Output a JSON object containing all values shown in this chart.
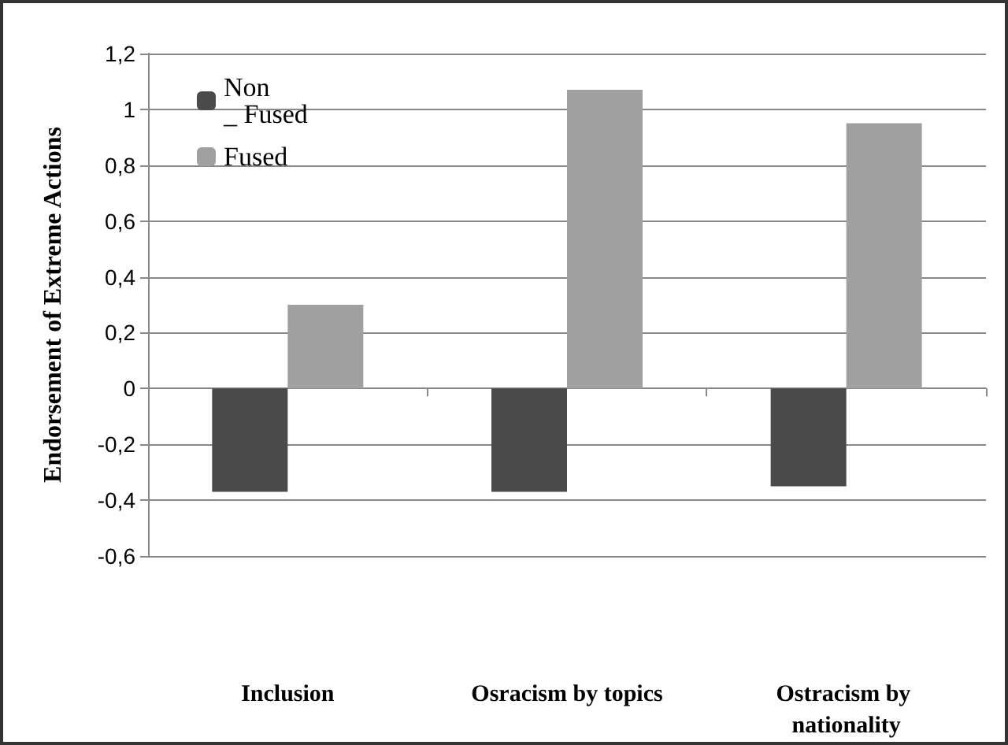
{
  "chart_data": {
    "type": "bar",
    "ylabel": "Endorsement of Extreme Actions",
    "categories": [
      "Inclusion",
      "Osracism by topics",
      "Ostracism by nationality"
    ],
    "series": [
      {
        "name": "Non\n_ Fused",
        "color": "#4a4a4a",
        "values": [
          -0.37,
          -0.37,
          -0.35
        ]
      },
      {
        "name": "Fused",
        "color": "#a0a0a0",
        "values": [
          0.3,
          1.07,
          0.95
        ]
      }
    ],
    "ylim": [
      -0.6,
      1.2
    ],
    "yticks": [
      {
        "value": -0.6,
        "label": "-0,6"
      },
      {
        "value": -0.4,
        "label": "-0,4"
      },
      {
        "value": -0.2,
        "label": "-0,2"
      },
      0,
      {
        "value": 0.2,
        "label": "0,2"
      },
      {
        "value": 0.4,
        "label": "0,4"
      },
      {
        "value": 0.6,
        "label": "0,6"
      },
      {
        "value": 0.8,
        "label": "0,8"
      },
      1,
      {
        "value": 1.2,
        "label": "1,2"
      }
    ],
    "grid": "y",
    "legend": "top left"
  }
}
